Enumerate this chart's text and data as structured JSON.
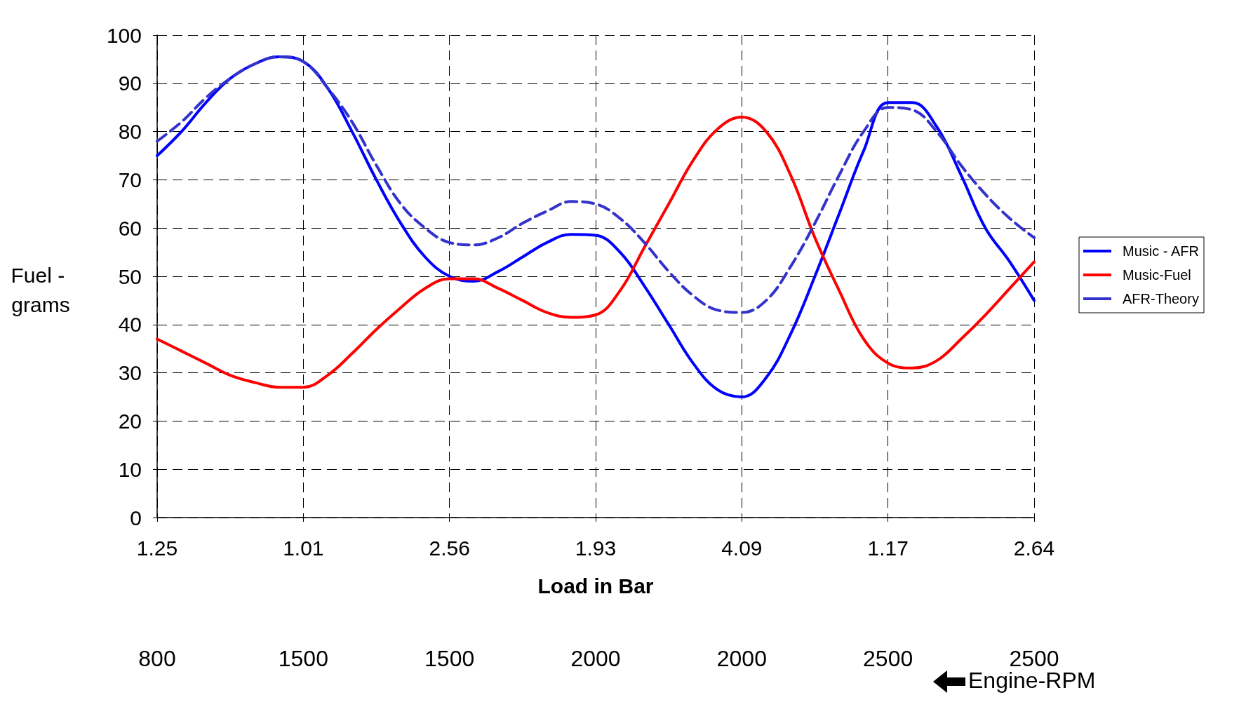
{
  "chart_data": {
    "type": "line",
    "xlabel": "Load in Bar",
    "ylabel": "Fuel - grams",
    "categories": [
      "1.25",
      null,
      null,
      null,
      null,
      null,
      "1.01",
      null,
      null,
      null,
      null,
      null,
      "2.56",
      null,
      null,
      null,
      null,
      null,
      "1.93",
      null,
      null,
      null,
      null,
      null,
      "4.09",
      null,
      null,
      null,
      null,
      null,
      "1.17",
      null,
      null,
      null,
      null,
      null,
      "2.64"
    ],
    "series": [
      {
        "name": "Music - AFR",
        "color": "#0000ff",
        "line_style": "solid",
        "values": [
          75,
          80,
          86,
          91,
          94,
          95.5,
          94.5,
          89,
          80,
          70,
          61,
          54,
          50,
          49,
          51,
          54,
          57,
          58.7,
          58.5,
          55,
          48,
          40,
          32,
          26.5,
          25,
          29,
          38,
          50,
          63,
          76,
          86,
          86,
          81,
          71,
          60,
          53,
          45
        ]
      },
      {
        "name": "Music-Fuel",
        "color": "#ff0000",
        "line_style": "solid",
        "values": [
          37,
          34.5,
          32,
          29.5,
          28,
          27,
          27,
          29.5,
          34,
          39,
          43.5,
          47.5,
          49.5,
          49.5,
          47.5,
          45,
          42.5,
          41.5,
          42,
          47,
          56,
          65,
          74,
          80.5,
          83,
          80,
          71,
          58,
          47,
          37,
          32,
          31,
          32.5,
          37,
          42,
          47.5,
          53
        ]
      },
      {
        "name": "AFR-Theory",
        "color": "#3333cc",
        "line_style": "dashed",
        "values": [
          78,
          82,
          87,
          91,
          94,
          95.5,
          94.5,
          89,
          82,
          73,
          65,
          60,
          57,
          56.5,
          58,
          61,
          63.5,
          65.5,
          65,
          62,
          57,
          51,
          46,
          43,
          42.5,
          45,
          52,
          61,
          71,
          80,
          85,
          84.5,
          80,
          73,
          67,
          62,
          58
        ]
      }
    ],
    "ylim": [
      0,
      100
    ],
    "yticks": [
      0,
      10,
      20,
      30,
      40,
      50,
      60,
      70,
      80,
      90,
      100
    ],
    "grid": true,
    "legend": "right",
    "marker": "none",
    "annotations": [
      "800",
      "1500",
      "1500",
      "2000",
      "2000",
      "2500",
      "2500",
      "Engine-RPM"
    ]
  }
}
